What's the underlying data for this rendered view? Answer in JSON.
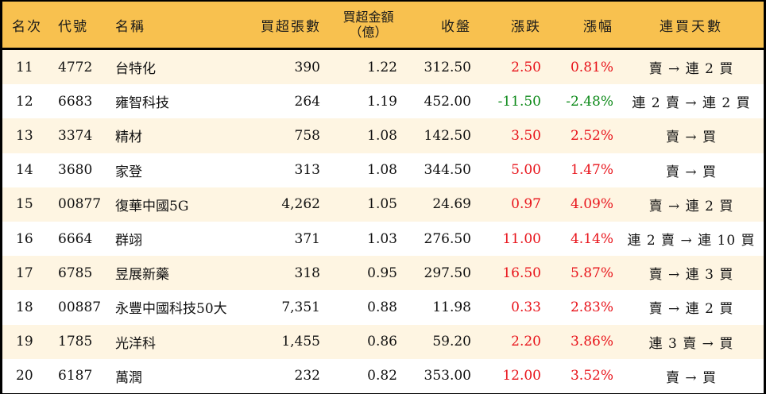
{
  "table": {
    "headers": {
      "rank": "名次",
      "code": "代號",
      "name": "名稱",
      "net_buy_lots": "買超張數",
      "net_buy_amount_line1": "買超金額",
      "net_buy_amount_line2": "（億）",
      "close": "收盤",
      "change": "漲跌",
      "change_pct": "漲幅",
      "consecutive_days": "連買天數"
    },
    "colors": {
      "header_bg": "#F8C14F",
      "row_alt_bg": "#FEF5E2",
      "row_bg": "#FFFFFF",
      "up": "#E8141B",
      "down": "#0E8A1A",
      "border": "#000000"
    },
    "rows": [
      {
        "rank": "11",
        "code": "4772",
        "name": "台特化",
        "net_buy_lots": "390",
        "net_buy_amount": "1.22",
        "close": "312.50",
        "change": "2.50",
        "change_pct": "0.81%",
        "direction": "up",
        "consecutive_days": "賣 → 連 2 買"
      },
      {
        "rank": "12",
        "code": "6683",
        "name": "雍智科技",
        "net_buy_lots": "264",
        "net_buy_amount": "1.19",
        "close": "452.00",
        "change": "-11.50",
        "change_pct": "-2.48%",
        "direction": "down",
        "consecutive_days": "連 2 賣 → 連 2 買"
      },
      {
        "rank": "13",
        "code": "3374",
        "name": "精材",
        "net_buy_lots": "758",
        "net_buy_amount": "1.08",
        "close": "142.50",
        "change": "3.50",
        "change_pct": "2.52%",
        "direction": "up",
        "consecutive_days": "賣 → 買"
      },
      {
        "rank": "14",
        "code": "3680",
        "name": "家登",
        "net_buy_lots": "313",
        "net_buy_amount": "1.08",
        "close": "344.50",
        "change": "5.00",
        "change_pct": "1.47%",
        "direction": "up",
        "consecutive_days": "賣 → 買"
      },
      {
        "rank": "15",
        "code": "00877",
        "name": "復華中國5G",
        "net_buy_lots": "4,262",
        "net_buy_amount": "1.05",
        "close": "24.69",
        "change": "0.97",
        "change_pct": "4.09%",
        "direction": "up",
        "consecutive_days": "賣 → 連 2 買"
      },
      {
        "rank": "16",
        "code": "6664",
        "name": "群翊",
        "net_buy_lots": "371",
        "net_buy_amount": "1.03",
        "close": "276.50",
        "change": "11.00",
        "change_pct": "4.14%",
        "direction": "up",
        "consecutive_days": "連 2 賣 → 連 10 買"
      },
      {
        "rank": "17",
        "code": "6785",
        "name": "昱展新藥",
        "net_buy_lots": "318",
        "net_buy_amount": "0.95",
        "close": "297.50",
        "change": "16.50",
        "change_pct": "5.87%",
        "direction": "up",
        "consecutive_days": "賣 → 連 3 買"
      },
      {
        "rank": "18",
        "code": "00887",
        "name": "永豐中國科技50大",
        "net_buy_lots": "7,351",
        "net_buy_amount": "0.88",
        "close": "11.98",
        "change": "0.33",
        "change_pct": "2.83%",
        "direction": "up",
        "consecutive_days": "賣 → 連 2 買"
      },
      {
        "rank": "19",
        "code": "1785",
        "name": "光洋科",
        "net_buy_lots": "1,455",
        "net_buy_amount": "0.86",
        "close": "59.20",
        "change": "2.20",
        "change_pct": "3.86%",
        "direction": "up",
        "consecutive_days": "連 3 賣 → 買"
      },
      {
        "rank": "20",
        "code": "6187",
        "name": "萬潤",
        "net_buy_lots": "232",
        "net_buy_amount": "0.82",
        "close": "353.00",
        "change": "12.00",
        "change_pct": "3.52%",
        "direction": "up",
        "consecutive_days": "賣 → 買"
      }
    ]
  }
}
